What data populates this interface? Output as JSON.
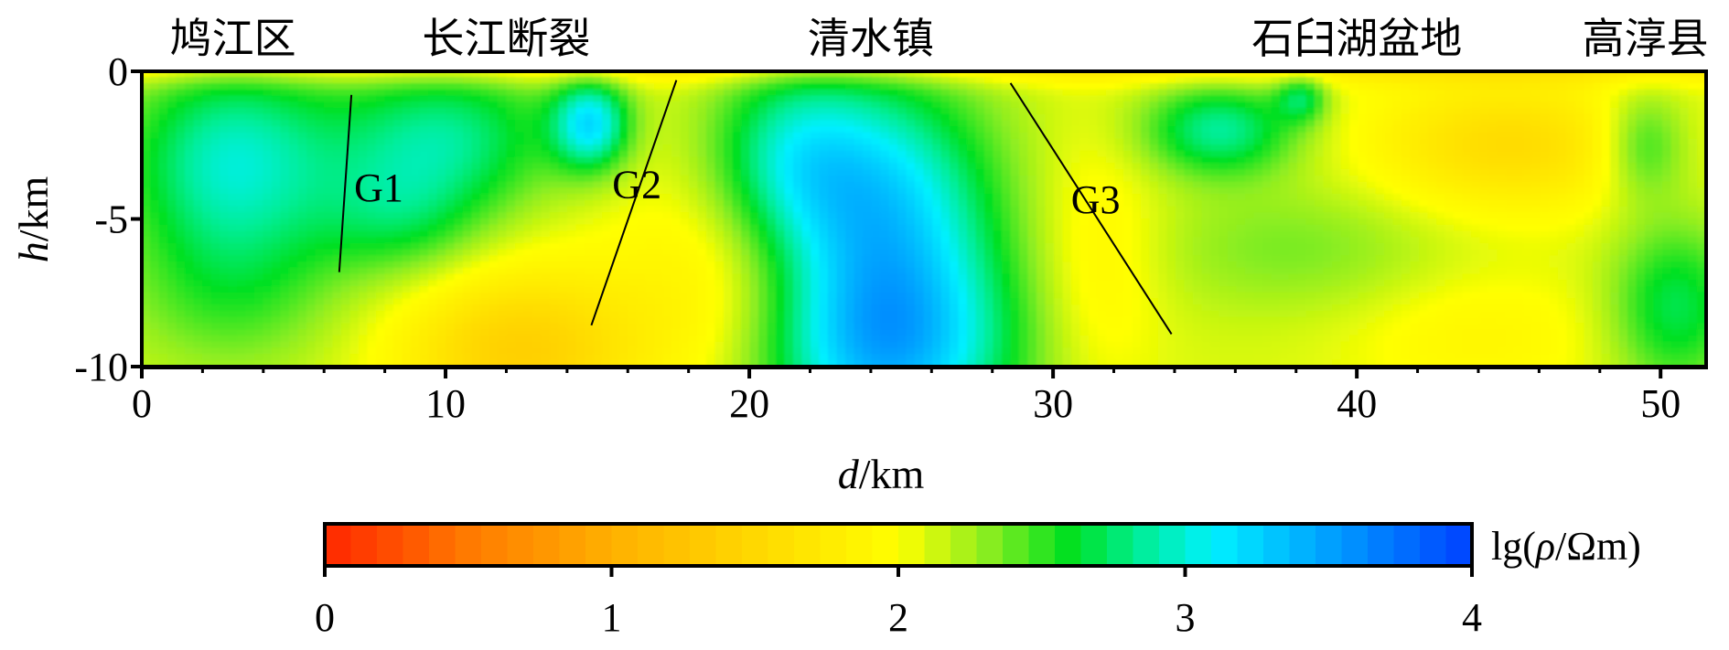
{
  "chart_data": {
    "type": "heatmap",
    "title": "",
    "top_labels": [
      {
        "text": "鸠江区",
        "d": 3.0
      },
      {
        "text": "长江断裂",
        "d": 12.0
      },
      {
        "text": "清水镇",
        "d": 24.0
      },
      {
        "text": "石臼湖盆地",
        "d": 40.0
      },
      {
        "text": "高淳县",
        "d": 49.5
      }
    ],
    "xaxis": {
      "label_italic": "d",
      "label_unit": "/km",
      "range": [
        0,
        51.5
      ],
      "ticks": [
        0,
        10,
        20,
        30,
        40,
        50
      ]
    },
    "yaxis": {
      "label_italic": "h",
      "label_unit": "/km",
      "range": [
        -10,
        0
      ],
      "ticks": [
        0,
        -5,
        -10
      ]
    },
    "faults": [
      {
        "name": "G1",
        "points": [
          [
            6.9,
            -0.8
          ],
          [
            6.5,
            -6.8
          ]
        ],
        "label_at": [
          7.8,
          -3.9
        ]
      },
      {
        "name": "G2",
        "points": [
          [
            17.6,
            -0.3
          ],
          [
            14.8,
            -8.6
          ]
        ],
        "label_at": [
          16.3,
          -3.8
        ]
      },
      {
        "name": "G3",
        "points": [
          [
            28.6,
            -0.4
          ],
          [
            33.9,
            -8.9
          ]
        ],
        "label_at": [
          31.4,
          -4.3
        ]
      }
    ],
    "colorbar": {
      "label_prefix": "lg(",
      "label_rho": "ρ",
      "label_suffix": "/Ωm)",
      "range": [
        0,
        4
      ],
      "ticks": [
        0,
        1,
        2,
        3,
        4
      ],
      "stops": [
        {
          "v": 0.0,
          "color": "#ff2600"
        },
        {
          "v": 0.5,
          "color": "#ff7a00"
        },
        {
          "v": 1.0,
          "color": "#ffb000"
        },
        {
          "v": 1.5,
          "color": "#ffd800"
        },
        {
          "v": 2.0,
          "color": "#ffff00"
        },
        {
          "v": 2.3,
          "color": "#90ee20"
        },
        {
          "v": 2.6,
          "color": "#00e020"
        },
        {
          "v": 2.85,
          "color": "#00ee99"
        },
        {
          "v": 3.1,
          "color": "#00f0ff"
        },
        {
          "v": 3.5,
          "color": "#00a0ff"
        },
        {
          "v": 4.0,
          "color": "#0040ff"
        }
      ]
    },
    "field": {
      "base": 2.1,
      "blobs": [
        {
          "d": 3.0,
          "h": -3.0,
          "sd": 2.5,
          "sh": 2.4,
          "a": 0.85
        },
        {
          "d": 3.0,
          "h": -7.5,
          "sd": 2.5,
          "sh": 2.0,
          "a": 0.35
        },
        {
          "d": 10.0,
          "h": -2.2,
          "sd": 2.6,
          "sh": 1.8,
          "a": 0.7
        },
        {
          "d": 8.5,
          "h": -5.0,
          "sd": 2.0,
          "sh": 1.5,
          "a": 0.45
        },
        {
          "d": 14.8,
          "h": -1.8,
          "sd": 0.9,
          "sh": 1.1,
          "a": 1.0
        },
        {
          "d": 12.5,
          "h": -9.5,
          "sd": 2.8,
          "sh": 2.0,
          "a": -0.7
        },
        {
          "d": 19.5,
          "h": -7.0,
          "sd": 2.5,
          "sh": 3.0,
          "a": -0.35
        },
        {
          "d": 21.3,
          "h": -3.0,
          "sd": 2.0,
          "sh": 2.3,
          "a": 0.7
        },
        {
          "d": 24.5,
          "h": -4.5,
          "sd": 2.6,
          "sh": 3.0,
          "a": 1.0
        },
        {
          "d": 24.5,
          "h": -9.5,
          "sd": 3.0,
          "sh": 2.5,
          "a": 1.2
        },
        {
          "d": 31.5,
          "h": -6.5,
          "sd": 1.5,
          "sh": 3.0,
          "a": -0.25
        },
        {
          "d": 35.5,
          "h": -2.0,
          "sd": 1.8,
          "sh": 1.1,
          "a": 0.75
        },
        {
          "d": 38.2,
          "h": -0.9,
          "sd": 0.6,
          "sh": 0.6,
          "a": 0.55
        },
        {
          "d": 38.0,
          "h": -6.0,
          "sd": 3.5,
          "sh": 1.6,
          "a": 0.25
        },
        {
          "d": 45.0,
          "h": -2.5,
          "sd": 3.2,
          "sh": 1.6,
          "a": -0.55
        },
        {
          "d": 44.0,
          "h": -9.0,
          "sd": 3.0,
          "sh": 1.6,
          "a": -0.2
        },
        {
          "d": 49.5,
          "h": -2.5,
          "sd": 1.0,
          "sh": 1.3,
          "a": 0.5
        },
        {
          "d": 50.5,
          "h": -8.0,
          "sd": 1.5,
          "sh": 2.0,
          "a": 0.6
        },
        {
          "d": 25.0,
          "h": 0.3,
          "sd": 60.0,
          "sh": 0.5,
          "a": -0.45
        }
      ]
    }
  }
}
